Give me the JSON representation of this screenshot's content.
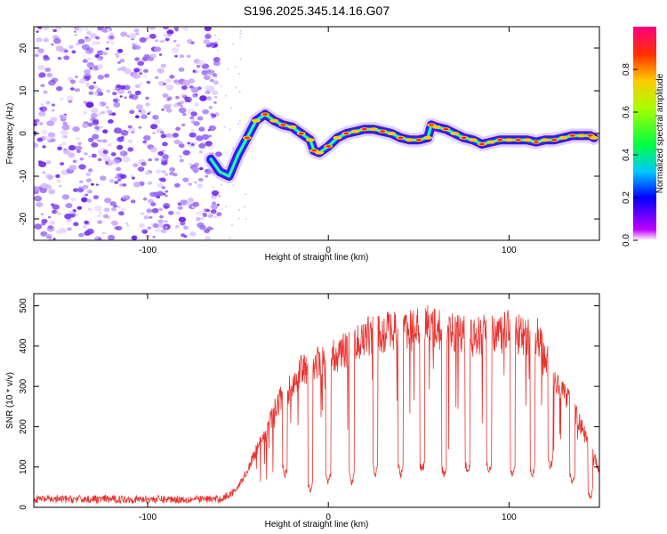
{
  "title": "S196.2025.345.14.16.G07",
  "chart_data": [
    {
      "type": "heatmap",
      "title": "S196.2025.345.14.16.G07",
      "xlabel": "Height of straight line (km)",
      "ylabel": "Frequency (Hz)",
      "xlim": [
        -163,
        150
      ],
      "ylim": [
        -25,
        25
      ],
      "xticks": [
        -100,
        0,
        100
      ],
      "yticks": [
        -20,
        -10,
        0,
        10,
        20
      ],
      "noise_region_x": [
        -163,
        -65
      ],
      "ridge": {
        "x": [
          -65,
          -60,
          -55,
          -50,
          -45,
          -40,
          -35,
          -30,
          -25,
          -20,
          -15,
          -10,
          -8,
          -5,
          0,
          5,
          10,
          15,
          20,
          25,
          30,
          35,
          40,
          45,
          50,
          55,
          57,
          60,
          65,
          70,
          75,
          80,
          85,
          90,
          95,
          100,
          105,
          110,
          115,
          120,
          125,
          130,
          135,
          140,
          145,
          147
        ],
        "y": [
          -6,
          -9,
          -10,
          -5,
          -1,
          3,
          4.5,
          3,
          2,
          1.5,
          0,
          -1.5,
          -4,
          -4.5,
          -3,
          -1,
          0,
          0.5,
          1,
          1,
          0.5,
          0,
          -1,
          -1.5,
          -1.5,
          -1,
          2,
          1.5,
          1,
          0,
          -1,
          -1.5,
          -2.5,
          -2,
          -1.5,
          -1.5,
          -1.5,
          -1.5,
          -2,
          -1.5,
          -1.5,
          -1,
          -0.5,
          -0.5,
          -0.5,
          -1
        ]
      },
      "colorbar": {
        "label": "Normalized spectral amplitude",
        "ticks": [
          "0.0",
          "0.2",
          "0.4",
          "0.6",
          "0.8"
        ],
        "range": [
          0,
          1
        ]
      }
    },
    {
      "type": "line",
      "xlabel": "Height of straight line (km)",
      "ylabel": "SNR (10 * v/v)",
      "xlim": [
        -163,
        150
      ],
      "ylim": [
        0,
        530
      ],
      "xticks": [
        -100,
        0,
        100
      ],
      "yticks": [
        0,
        100,
        200,
        300,
        400,
        500
      ],
      "series": [
        {
          "name": "SNR",
          "color": "#e8322d",
          "x": [
            -163,
            -140,
            -120,
            -100,
            -80,
            -60,
            -55,
            -50,
            -45,
            -40,
            -35,
            -30,
            -25,
            -20,
            -15,
            -10,
            -5,
            0,
            5,
            10,
            15,
            20,
            25,
            30,
            35,
            40,
            45,
            50,
            55,
            60,
            65,
            70,
            75,
            80,
            85,
            90,
            95,
            100,
            105,
            110,
            115,
            120,
            125,
            130,
            135,
            140,
            145,
            150
          ],
          "y": [
            20,
            20,
            20,
            20,
            20,
            20,
            30,
            50,
            90,
            140,
            180,
            240,
            280,
            300,
            340,
            350,
            360,
            370,
            380,
            390,
            400,
            420,
            430,
            430,
            440,
            440,
            450,
            440,
            450,
            440,
            440,
            430,
            430,
            420,
            430,
            430,
            430,
            440,
            430,
            420,
            430,
            370,
            330,
            280,
            250,
            200,
            150,
            90
          ]
        }
      ],
      "dips": [
        {
          "x": -24,
          "y": 80
        },
        {
          "x": -10,
          "y": 40
        },
        {
          "x": 0,
          "y": 60
        },
        {
          "x": 13,
          "y": 60
        },
        {
          "x": 26,
          "y": 80
        },
        {
          "x": 40,
          "y": 80
        },
        {
          "x": 52,
          "y": 90
        },
        {
          "x": 64,
          "y": 80
        },
        {
          "x": 77,
          "y": 90
        },
        {
          "x": 89,
          "y": 90
        },
        {
          "x": 102,
          "y": 80
        },
        {
          "x": 113,
          "y": 80
        },
        {
          "x": 123,
          "y": 100
        },
        {
          "x": 135,
          "y": 60
        },
        {
          "x": 145,
          "y": 20
        }
      ]
    }
  ]
}
